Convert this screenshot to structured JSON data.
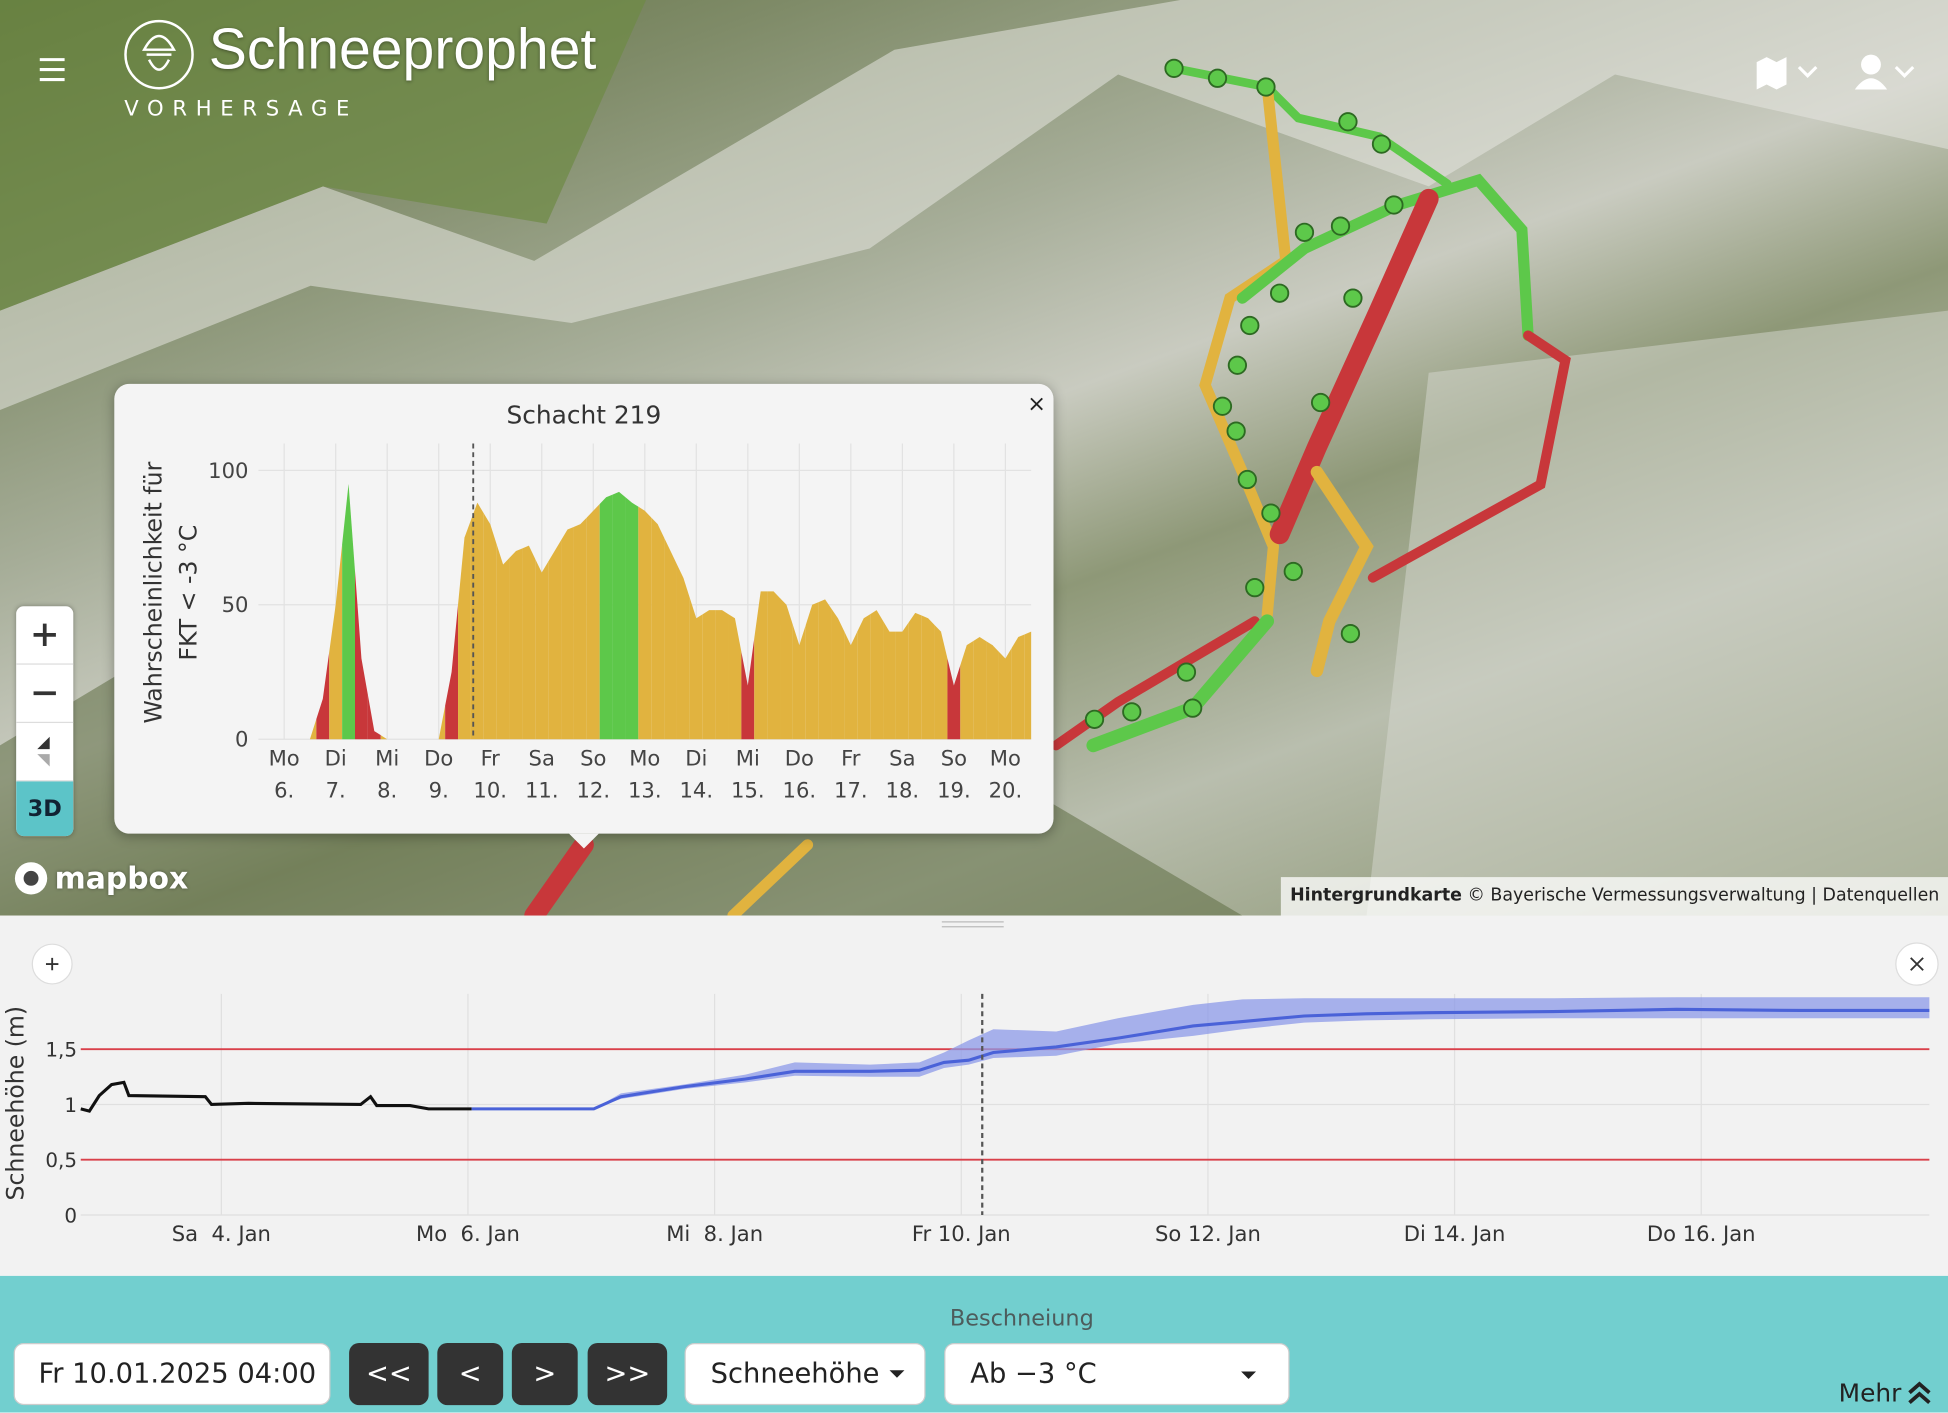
{
  "header": {
    "title": "Schneeprophet",
    "subtitle": "VORHERSAGE"
  },
  "map": {
    "logo": "mapbox",
    "view_button": "3D",
    "attribution_bold": "Hintergrundkarte",
    "attribution": "© Bayerische Vermessungsverwaltung | Datenquellen",
    "popup_close": "×"
  },
  "chart_data": [
    {
      "type": "area",
      "title": "Schacht 219",
      "y_label": [
        "Wahrscheinlichkeit für",
        "FKT < -3 °C"
      ],
      "x": [
        0,
        0.25,
        0.5,
        0.75,
        1,
        1.25,
        1.5,
        1.75,
        2,
        2.25,
        2.5,
        2.75,
        3,
        3.25,
        3.5,
        3.75,
        4,
        4.25,
        4.5,
        4.75,
        5,
        5.25,
        5.5,
        5.75,
        6,
        6.25,
        6.5,
        6.75,
        7,
        7.25,
        7.5,
        7.75,
        8,
        8.25,
        8.5,
        8.75,
        9,
        9.25,
        9.5,
        9.75,
        10,
        10.25,
        10.5,
        10.75,
        11,
        11.25,
        11.5,
        11.75,
        12,
        12.25,
        12.5,
        12.75,
        13,
        13.25,
        13.5,
        13.75,
        14,
        14.25,
        14.5,
        14.75,
        15
      ],
      "values": [
        0,
        0,
        0,
        0,
        0,
        15,
        50,
        95,
        30,
        3,
        0,
        0,
        0,
        0,
        0,
        25,
        75,
        88,
        80,
        65,
        70,
        72,
        62,
        70,
        78,
        80,
        85,
        90,
        92,
        88,
        85,
        80,
        70,
        60,
        45,
        48,
        48,
        45,
        20,
        55,
        55,
        50,
        35,
        50,
        52,
        45,
        35,
        45,
        48,
        40,
        40,
        47,
        45,
        40,
        20,
        35,
        38,
        35,
        30,
        38,
        40
      ],
      "point_colors": [
        "#e1b33f",
        "#e1b33f",
        "#e1b33f",
        "#e1b33f",
        "#e1b33f",
        "#c8373a",
        "#e1b33f",
        "#5dc84a",
        "#c8373a",
        "#c8373a",
        "#e1b33f",
        "#e1b33f",
        "#e1b33f",
        "#e1b33f",
        "#e1b33f",
        "#c8373a",
        "#e1b33f",
        "#e1b33f",
        "#e1b33f",
        "#e1b33f",
        "#e1b33f",
        "#e1b33f",
        "#e1b33f",
        "#e1b33f",
        "#e1b33f",
        "#e1b33f",
        "#e1b33f",
        "#5dc84a",
        "#5dc84a",
        "#5dc84a",
        "#e1b33f",
        "#e1b33f",
        "#e1b33f",
        "#e1b33f",
        "#e1b33f",
        "#e1b33f",
        "#e1b33f",
        "#e1b33f",
        "#c8373a",
        "#e1b33f",
        "#e1b33f",
        "#e1b33f",
        "#e1b33f",
        "#e1b33f",
        "#e1b33f",
        "#e1b33f",
        "#e1b33f",
        "#e1b33f",
        "#e1b33f",
        "#e1b33f",
        "#e1b33f",
        "#e1b33f",
        "#e1b33f",
        "#e1b33f",
        "#c8373a",
        "#e1b33f",
        "#e1b33f",
        "#e1b33f",
        "#e1b33f",
        "#e1b33f",
        "#e1b33f"
      ],
      "xlim": [
        0,
        15
      ],
      "ylim": [
        0,
        110
      ],
      "yticks": [
        0,
        50,
        100
      ],
      "xticks": [
        {
          "value": 0.5,
          "label": [
            "Mo",
            "6."
          ]
        },
        {
          "value": 1.5,
          "label": [
            "Di",
            "7."
          ]
        },
        {
          "value": 2.5,
          "label": [
            "Mi",
            "8."
          ]
        },
        {
          "value": 3.5,
          "label": [
            "Do",
            "9."
          ]
        },
        {
          "value": 4.5,
          "label": [
            "Fr",
            "10."
          ]
        },
        {
          "value": 5.5,
          "label": [
            "Sa",
            "11."
          ]
        },
        {
          "value": 6.5,
          "label": [
            "So",
            "12."
          ]
        },
        {
          "value": 7.5,
          "label": [
            "Mo",
            "13."
          ]
        },
        {
          "value": 8.5,
          "label": [
            "Di",
            "14."
          ]
        },
        {
          "value": 9.5,
          "label": [
            "Mi",
            "15."
          ]
        },
        {
          "value": 10.5,
          "label": [
            "Do",
            "16."
          ]
        },
        {
          "value": 11.5,
          "label": [
            "Fr",
            "17."
          ]
        },
        {
          "value": 12.5,
          "label": [
            "Sa",
            "18."
          ]
        },
        {
          "value": 13.5,
          "label": [
            "So",
            "19."
          ]
        },
        {
          "value": 14.5,
          "label": [
            "Mo",
            "20."
          ]
        }
      ],
      "now_x": 4.17,
      "grid": true
    },
    {
      "type": "line",
      "y_label": "Schneehöhe (m)",
      "series": [
        {
          "color": "#111111",
          "x": [
            -1.14,
            -1.07,
            -0.99,
            -0.89,
            -0.79,
            -0.75,
            -0.13,
            -0.08,
            0.22,
            1.13,
            1.21,
            1.26,
            1.53,
            1.68,
            2.03
          ],
          "values": [
            0.96,
            0.94,
            1.08,
            1.18,
            1.2,
            1.08,
            1.07,
            1.0,
            1.01,
            1.0,
            1.07,
            0.99,
            0.99,
            0.96,
            0.96
          ]
        },
        {
          "color": "#4a62d8",
          "band_color": "#8c9ae8",
          "x": [
            2.03,
            3.02,
            3.24,
            3.75,
            4.25,
            4.65,
            5.26,
            5.66,
            5.86,
            6.06,
            6.26,
            6.77,
            7.27,
            7.88,
            8.28,
            8.78,
            9.28,
            9.79,
            10.8,
            11.8,
            12.81,
            13.85
          ],
          "values": [
            0.96,
            0.96,
            1.07,
            1.16,
            1.23,
            1.3,
            1.3,
            1.31,
            1.38,
            1.4,
            1.47,
            1.52,
            1.6,
            1.71,
            1.75,
            1.8,
            1.82,
            1.83,
            1.84,
            1.86,
            1.85,
            1.85
          ],
          "lower": [
            0.96,
            0.96,
            1.05,
            1.14,
            1.2,
            1.26,
            1.25,
            1.25,
            1.33,
            1.36,
            1.42,
            1.44,
            1.55,
            1.62,
            1.68,
            1.74,
            1.76,
            1.77,
            1.78,
            1.78,
            1.78,
            1.78
          ],
          "upper": [
            0.96,
            0.96,
            1.1,
            1.18,
            1.27,
            1.38,
            1.36,
            1.38,
            1.47,
            1.58,
            1.68,
            1.66,
            1.78,
            1.9,
            1.95,
            1.96,
            1.96,
            1.96,
            1.96,
            1.97,
            1.97,
            1.97
          ]
        }
      ],
      "xlim": [
        -1.14,
        13.85
      ],
      "ylim": [
        0,
        2
      ],
      "xticks": [
        {
          "value": 0,
          "label": "Sa  4. Jan"
        },
        {
          "value": 2,
          "label": "Mo  6. Jan"
        },
        {
          "value": 4,
          "label": "Mi  8. Jan"
        },
        {
          "value": 6,
          "label": "Fr 10. Jan"
        },
        {
          "value": 8,
          "label": "So 12. Jan"
        },
        {
          "value": 10,
          "label": "Di 14. Jan"
        },
        {
          "value": 12,
          "label": "Do 16. Jan"
        }
      ],
      "yticks": [
        0,
        {
          "value": 0.5,
          "label": "0,5"
        },
        1,
        {
          "value": 1.5,
          "label": "1,5"
        }
      ],
      "reference_lines": [
        {
          "value": 0.5,
          "color": "#d9404a"
        },
        {
          "value": 1.5,
          "color": "#d9404a"
        }
      ],
      "now_x": 6.17,
      "grid": true
    }
  ],
  "controls": {
    "section_label": "Beschneiung",
    "datetime": "Fr 10.01.2025 04:00",
    "nav_buttons": [
      "<<",
      "<",
      ">",
      ">>"
    ],
    "layer_select": "Schneehöhe",
    "threshold_select": "Ab −3 °C",
    "more": "Mehr"
  }
}
